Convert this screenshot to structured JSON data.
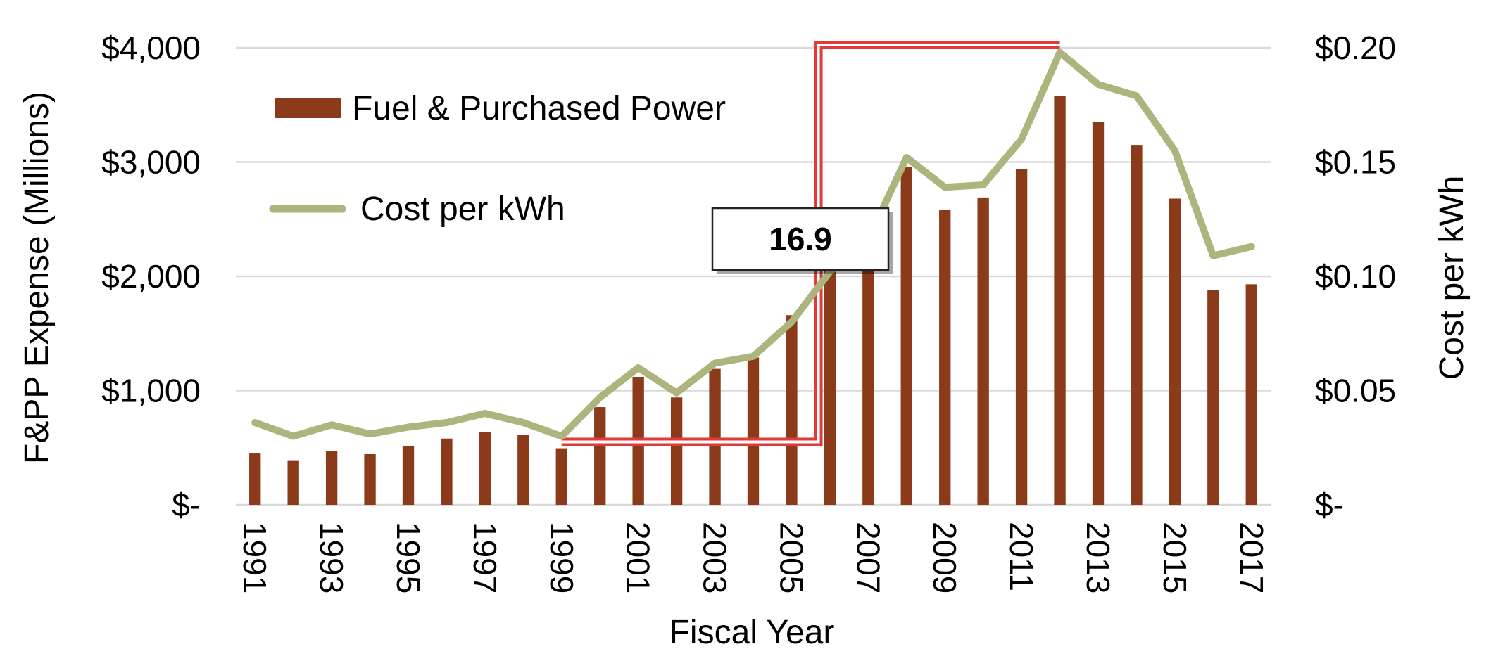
{
  "chart_data": {
    "type": "bar+line",
    "title": "",
    "xlabel": "Fiscal Year",
    "ylabel_left": "F&PP Expense (Millions)",
    "ylabel_right": "Cost per kWh",
    "ylim_left": [
      0,
      4000
    ],
    "ylim_right": [
      0,
      0.2
    ],
    "y_ticks_left": [
      "$-",
      "$1,000",
      "$2,000",
      "$3,000",
      "$4,000"
    ],
    "y_ticks_right": [
      "$-",
      "$0.05",
      "$0.10",
      "$0.15",
      "$0.20"
    ],
    "grid": true,
    "legend_position": "top-left",
    "x_tick_labels": [
      "1991",
      "1993",
      "1995",
      "1997",
      "1999",
      "2001",
      "2003",
      "2005",
      "2007",
      "2009",
      "2011",
      "2013",
      "2015",
      "2017"
    ],
    "categories": [
      1991,
      1992,
      1993,
      1994,
      1995,
      1996,
      1997,
      1998,
      1999,
      2000,
      2001,
      2002,
      2003,
      2004,
      2005,
      2006,
      2007,
      2008,
      2009,
      2010,
      2011,
      2012,
      2013,
      2014,
      2015,
      2016,
      2017
    ],
    "series": [
      {
        "name": "Fuel & Purchased Power",
        "type": "bar",
        "axis": "left",
        "color": "#8B3A1A",
        "values": [
          455,
          390,
          470,
          445,
          515,
          580,
          640,
          615,
          495,
          855,
          1120,
          940,
          1190,
          1290,
          1660,
          2080,
          2150,
          2960,
          2580,
          2690,
          2940,
          3580,
          3350,
          3150,
          2680,
          1880,
          1930
        ]
      },
      {
        "name": "Cost per kWh",
        "type": "line",
        "axis": "right",
        "color": "#AEB47D",
        "values": [
          0.036,
          0.03,
          0.035,
          0.031,
          0.034,
          0.036,
          0.04,
          0.036,
          0.03,
          0.047,
          0.06,
          0.049,
          0.062,
          0.065,
          0.08,
          0.102,
          0.116,
          0.152,
          0.139,
          0.14,
          0.16,
          0.198,
          0.184,
          0.179,
          0.155,
          0.109,
          0.113
        ]
      }
    ],
    "annotations": [
      {
        "label": "16.9",
        "from_year": 1999,
        "to_year": 2012,
        "color": "#E03A3A"
      }
    ]
  }
}
